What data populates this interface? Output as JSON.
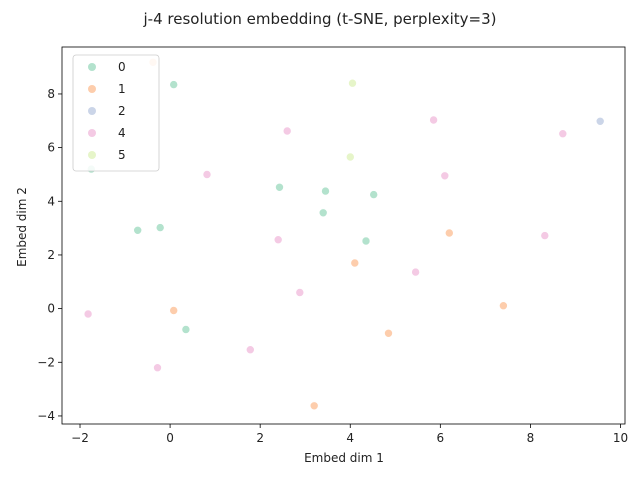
{
  "chart_data": {
    "type": "scatter",
    "title": "j-4 resolution embedding (t-SNE, perplexity=3)",
    "xlabel": "Embed dim 1",
    "ylabel": "Embed dim 2",
    "xlim": [
      -2.4,
      10.1
    ],
    "ylim": [
      -4.3,
      9.75
    ],
    "xticks": [
      -2,
      0,
      2,
      4,
      6,
      8,
      10
    ],
    "yticks": [
      -4,
      -2,
      0,
      2,
      4,
      6,
      8
    ],
    "grid": false,
    "legend_position": "top-left",
    "series": [
      {
        "name": "0",
        "color": "#b3e2cd",
        "points": [
          [
            0.08,
            8.35
          ],
          [
            -1.75,
            5.2
          ],
          [
            -0.72,
            2.92
          ],
          [
            -0.22,
            3.02
          ],
          [
            2.43,
            4.52
          ],
          [
            3.45,
            4.38
          ],
          [
            3.4,
            3.57
          ],
          [
            4.52,
            4.25
          ],
          [
            4.35,
            2.52
          ],
          [
            0.35,
            -0.78
          ]
        ]
      },
      {
        "name": "1",
        "color": "#fdcdac",
        "points": [
          [
            -0.38,
            9.18
          ],
          [
            6.2,
            2.82
          ],
          [
            4.1,
            1.7
          ],
          [
            0.08,
            -0.07
          ],
          [
            7.4,
            0.11
          ],
          [
            4.85,
            -0.92
          ],
          [
            3.2,
            -3.62
          ]
        ]
      },
      {
        "name": "2",
        "color": "#cbd5e8",
        "points": [
          [
            9.55,
            6.98
          ]
        ]
      },
      {
        "name": "4",
        "color": "#f4cae4",
        "points": [
          [
            2.6,
            6.62
          ],
          [
            5.85,
            7.03
          ],
          [
            8.72,
            6.52
          ],
          [
            0.82,
            5.0
          ],
          [
            6.1,
            4.95
          ],
          [
            2.4,
            2.57
          ],
          [
            8.32,
            2.72
          ],
          [
            5.45,
            1.36
          ],
          [
            2.88,
            0.6
          ],
          [
            -1.82,
            -0.2
          ],
          [
            1.78,
            -1.53
          ],
          [
            -0.28,
            -2.2
          ]
        ]
      },
      {
        "name": "5",
        "color": "#e6f5c9",
        "points": [
          [
            4.05,
            8.4
          ],
          [
            4.0,
            5.65
          ]
        ]
      }
    ]
  }
}
